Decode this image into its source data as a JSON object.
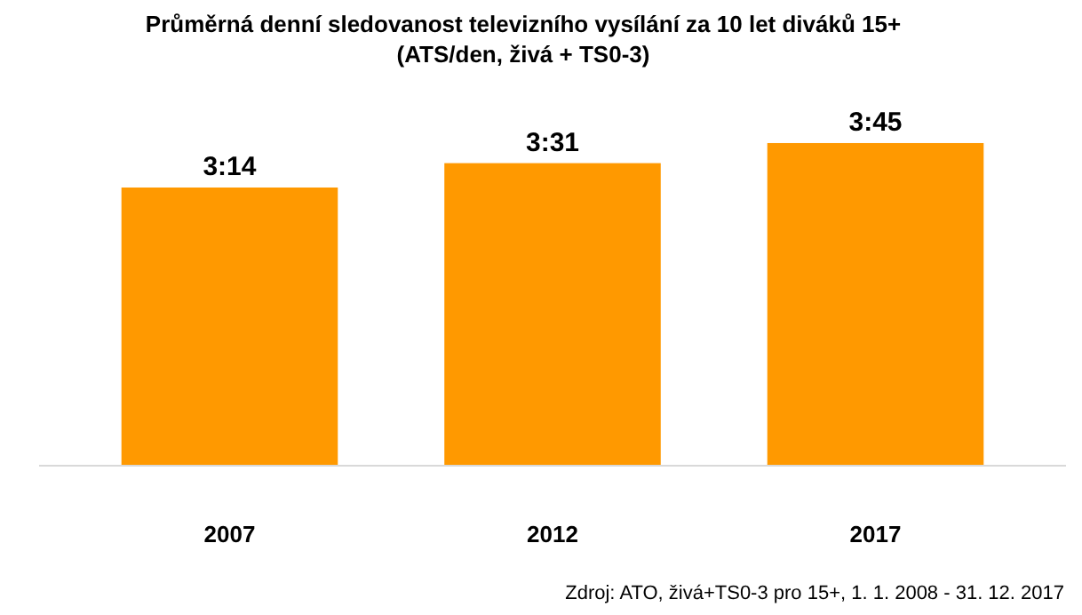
{
  "chart_data": {
    "type": "bar",
    "title": "Průměrná denní sledovanost televizního vysílání za 10 let diváků 15+",
    "subtitle": "(ATS/den, živá + TS0-3)",
    "categories": [
      "2007",
      "2012",
      "2017"
    ],
    "values": [
      194,
      211,
      225
    ],
    "value_labels": [
      "3:14",
      "3:31",
      "3:45"
    ],
    "color": "#ff9900",
    "annotations": [
      "Zdroj: ATO, živá+TS0-3 pro 15+, 1. 1. 2008 - 31. 12. 2017"
    ]
  }
}
